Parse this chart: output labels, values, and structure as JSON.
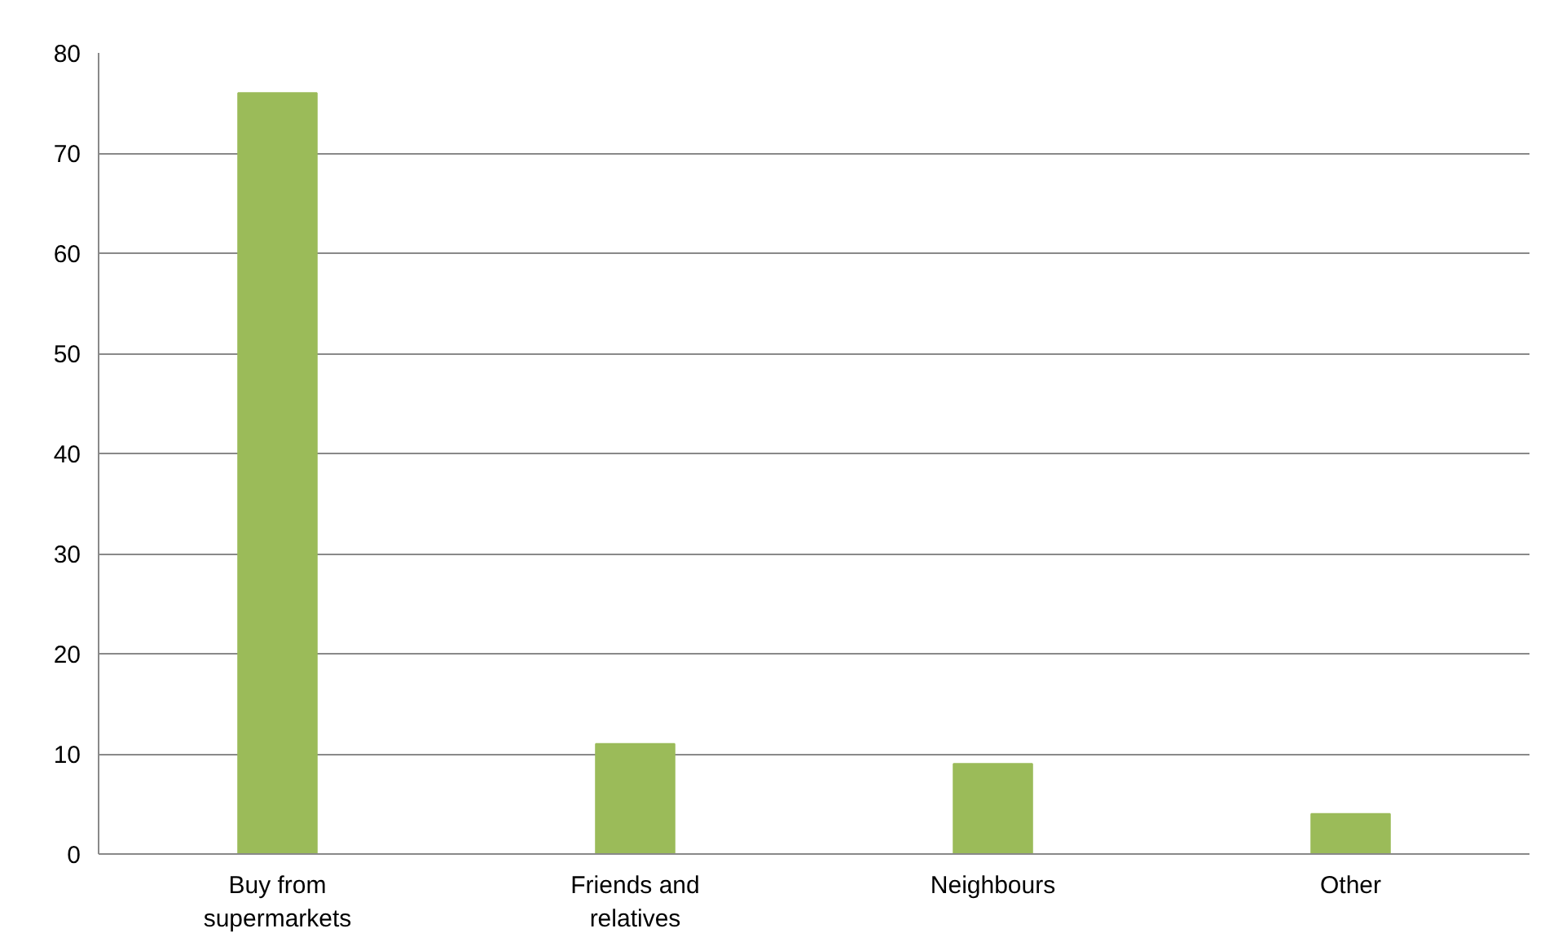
{
  "chart_data": {
    "type": "bar",
    "categories": [
      "Buy from supermarkets",
      "Friends and relatives",
      "Neighbours",
      "Other"
    ],
    "values": [
      76,
      11,
      9,
      4
    ],
    "color": "#9bbb59",
    "ylim": [
      0,
      80
    ],
    "yticks": [
      0,
      10,
      20,
      30,
      40,
      50,
      60,
      70,
      80
    ],
    "grid": "y"
  }
}
